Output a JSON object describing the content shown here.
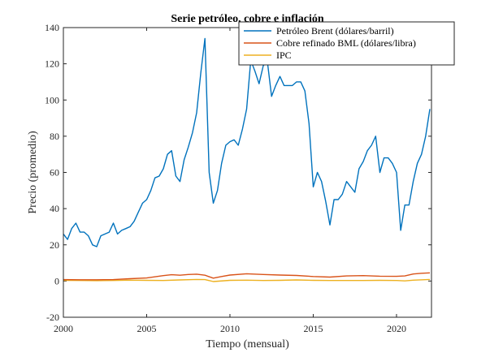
{
  "chart_data": {
    "type": "line",
    "title": "Serie petróleo, cobre e inflación",
    "xlabel": "Tiempo (mensual)",
    "ylabel": "Precio (promedio)",
    "xlim": [
      2000,
      2022.1
    ],
    "ylim": [
      -20,
      140
    ],
    "x_ticks": [
      "2000",
      "2005",
      "2010",
      "2015",
      "2020"
    ],
    "y_ticks": [
      "-20",
      "0",
      "20",
      "40",
      "60",
      "80",
      "100",
      "120",
      "140"
    ],
    "grid": false,
    "legend_position": "top-right",
    "series": [
      {
        "name": "Petróleo Brent (dólares/barril)",
        "color": "#0072BD",
        "x": [
          2000.0,
          2000.25,
          2000.5,
          2000.75,
          2001.0,
          2001.25,
          2001.5,
          2001.75,
          2002.0,
          2002.25,
          2002.5,
          2002.75,
          2003.0,
          2003.25,
          2003.5,
          2003.75,
          2004.0,
          2004.25,
          2004.5,
          2004.75,
          2005.0,
          2005.25,
          2005.5,
          2005.75,
          2006.0,
          2006.25,
          2006.5,
          2006.75,
          2007.0,
          2007.25,
          2007.5,
          2007.75,
          2008.0,
          2008.25,
          2008.5,
          2008.75,
          2009.0,
          2009.25,
          2009.5,
          2009.75,
          2010.0,
          2010.25,
          2010.5,
          2010.75,
          2011.0,
          2011.25,
          2011.5,
          2011.75,
          2012.0,
          2012.25,
          2012.5,
          2012.75,
          2013.0,
          2013.25,
          2013.5,
          2013.75,
          2014.0,
          2014.25,
          2014.5,
          2014.75,
          2015.0,
          2015.25,
          2015.5,
          2015.75,
          2016.0,
          2016.25,
          2016.5,
          2016.75,
          2017.0,
          2017.25,
          2017.5,
          2017.75,
          2018.0,
          2018.25,
          2018.5,
          2018.75,
          2019.0,
          2019.25,
          2019.5,
          2019.75,
          2020.0,
          2020.25,
          2020.5,
          2020.75,
          2021.0,
          2021.25,
          2021.5,
          2021.75,
          2022.0
        ],
        "values": [
          26,
          23,
          29,
          32,
          27,
          27,
          25,
          20,
          19,
          25,
          26,
          27,
          32,
          26,
          28,
          29,
          30,
          33,
          38,
          43,
          45,
          50,
          57,
          58,
          62,
          70,
          72,
          58,
          55,
          67,
          74,
          82,
          93,
          115,
          134,
          60,
          43,
          50,
          65,
          75,
          77,
          78,
          75,
          84,
          95,
          122,
          116,
          109,
          119,
          121,
          102,
          108,
          113,
          108,
          108,
          108,
          110,
          110,
          105,
          87,
          52,
          60,
          55,
          44,
          31,
          45,
          45,
          48,
          55,
          52,
          49,
          62,
          66,
          72,
          75,
          80,
          60,
          68,
          68,
          65,
          60,
          28,
          42,
          42,
          55,
          65,
          70,
          80,
          95
        ]
      },
      {
        "name": "Cobre refinado BML (dólares/libra)",
        "color": "#D95319",
        "x": [
          2000.0,
          2001.0,
          2002.0,
          2003.0,
          2004.0,
          2005.0,
          2006.0,
          2006.5,
          2007.0,
          2007.5,
          2008.0,
          2008.5,
          2009.0,
          2009.5,
          2010.0,
          2011.0,
          2012.0,
          2013.0,
          2014.0,
          2015.0,
          2016.0,
          2017.0,
          2018.0,
          2019.0,
          2020.0,
          2020.5,
          2021.0,
          2021.5,
          2022.0
        ],
        "values": [
          0.8,
          0.7,
          0.7,
          0.8,
          1.3,
          1.7,
          3.0,
          3.5,
          3.2,
          3.6,
          3.8,
          3.2,
          1.6,
          2.5,
          3.3,
          4.0,
          3.6,
          3.3,
          3.1,
          2.5,
          2.2,
          2.8,
          3.0,
          2.7,
          2.6,
          2.8,
          3.9,
          4.3,
          4.5
        ]
      },
      {
        "name": "IPC",
        "color": "#EDB120",
        "x": [
          2000.0,
          2001.0,
          2002.0,
          2003.0,
          2004.0,
          2005.0,
          2006.0,
          2007.0,
          2008.0,
          2008.5,
          2009.0,
          2010.0,
          2011.0,
          2012.0,
          2013.0,
          2014.0,
          2015.0,
          2016.0,
          2017.0,
          2018.0,
          2019.0,
          2020.0,
          2020.5,
          2021.0,
          2022.0
        ],
        "values": [
          0.4,
          0.3,
          0.2,
          0.3,
          0.5,
          0.4,
          0.3,
          0.6,
          0.9,
          0.8,
          -0.3,
          0.4,
          0.5,
          0.3,
          0.4,
          0.6,
          0.4,
          0.3,
          0.3,
          0.3,
          0.4,
          0.3,
          0.1,
          0.5,
          0.9
        ]
      }
    ]
  }
}
